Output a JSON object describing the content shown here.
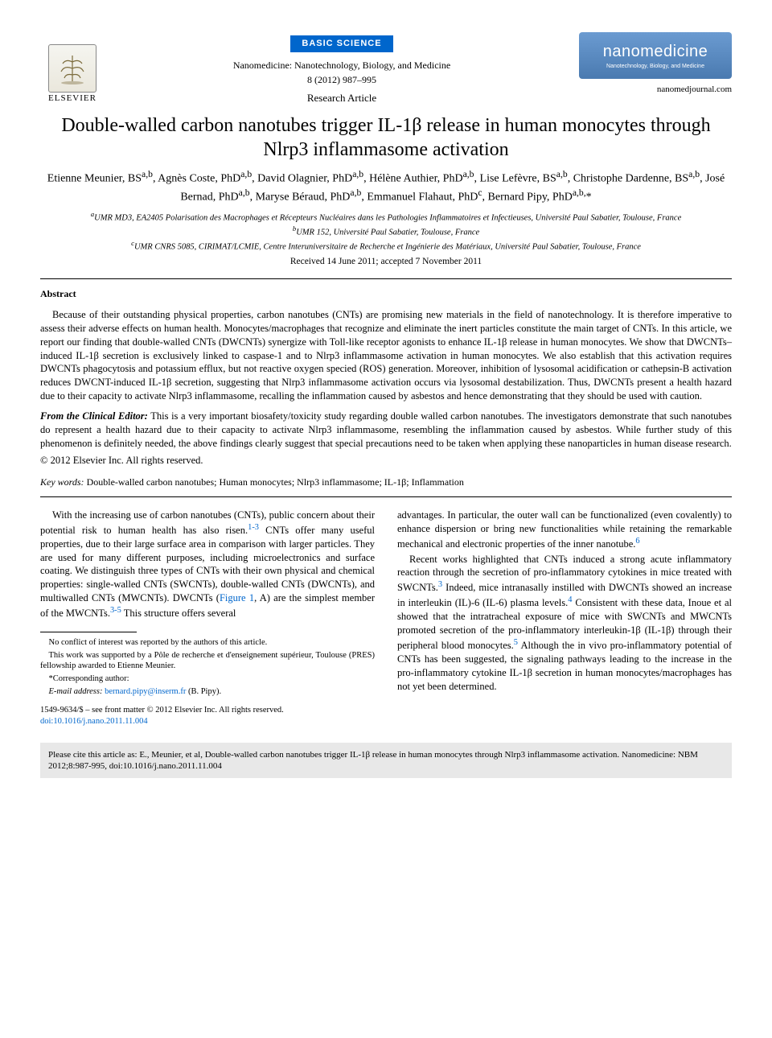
{
  "header": {
    "publisher_name": "ELSEVIER",
    "badge": "BASIC SCIENCE",
    "journal_full": "Nanomedicine: Nanotechnology, Biology, and Medicine",
    "volume_pages": "8 (2012) 987–995",
    "article_type": "Research Article",
    "brand_logo_big": "nanomedicine",
    "brand_logo_small": "Nanotechnology, Biology, and Medicine",
    "journal_url": "nanomedjournal.com",
    "badge_bg": "#0066cc",
    "logo_gradient_top": "#6b9bd1",
    "logo_gradient_bottom": "#4a7ab0"
  },
  "title": "Double-walled carbon nanotubes trigger IL-1β release in human monocytes through Nlrp3 inflammasome activation",
  "authors_html": "Etienne Meunier, BS<sup>a,b</sup>, Agnès Coste, PhD<sup>a,b</sup>, David Olagnier, PhD<sup>a,b</sup>, Hélène Authier, PhD<sup>a,b</sup>, Lise Lefèvre, BS<sup>a,b</sup>, Christophe Dardenne, BS<sup>a,b</sup>, José Bernad, PhD<sup>a,b</sup>, Maryse Béraud, PhD<sup>a,b</sup>, Emmanuel Flahaut, PhD<sup>c</sup>, Bernard Pipy, PhD<sup>a,b,</sup>*",
  "affiliations": {
    "a": "UMR MD3, EA2405 Polarisation des Macrophages et Récepteurs Nucléaires dans les Pathologies Inflammatoires et Infectieuses, Université Paul Sabatier, Toulouse, France",
    "b": "UMR 152, Université Paul Sabatier, Toulouse, France",
    "c": "UMR CNRS 5085, CIRIMAT/LCMIE, Centre Interuniversitaire de Recherche et Ingénierie des Matériaux, Université Paul Sabatier, Toulouse, France"
  },
  "dates": "Received 14 June 2011; accepted 7 November 2011",
  "abstract": {
    "label": "Abstract",
    "text": "Because of their outstanding physical properties, carbon nanotubes (CNTs) are promising new materials in the field of nanotechnology. It is therefore imperative to assess their adverse effects on human health. Monocytes/macrophages that recognize and eliminate the inert particles constitute the main target of CNTs. In this article, we report our finding that double-walled CNTs (DWCNTs) synergize with Toll-like receptor agonists to enhance IL-1β release in human monocytes. We show that DWCNTs–induced IL-1β secretion is exclusively linked to caspase-1 and to Nlrp3 inflammasome activation in human monocytes. We also establish that this activation requires DWCNTs phagocytosis and potassium efflux, but not reactive oxygen specied (ROS) generation. Moreover, inhibition of lysosomal acidification or cathepsin-B activation reduces DWCNT-induced IL-1β secretion, suggesting that Nlrp3 inflammasome activation occurs via lysosomal destabilization. Thus, DWCNTs present a health hazard due to their capacity to activate Nlrp3 inflammasome, recalling the inflammation caused by asbestos and hence demonstrating that they should be used with caution.",
    "clinical_lead": "From the Clinical Editor:",
    "clinical_text": " This is a very important biosafety/toxicity study regarding double walled carbon nanotubes. The investigators demonstrate that such nanotubes do represent a health hazard due to their capacity to activate Nlrp3 inflammasome, resembling the inflammation caused by asbestos. While further study of this phenomenon is definitely needed, the above findings clearly suggest that special precautions need to be taken when applying these nanoparticles in human disease research.",
    "copyright": "© 2012 Elsevier Inc. All rights reserved."
  },
  "keywords": {
    "label": "Key words:",
    "text": "Double-walled carbon nanotubes; Human monocytes; Nlrp3 inflammasome; IL-1β; Inflammation"
  },
  "body": {
    "col1_p1": "With the increasing use of carbon nanotubes (CNTs), public concern about their potential risk to human health has also risen.",
    "col1_ref1": "1-3",
    "col1_p1b": " CNTs offer many useful properties, due to their large surface area in comparison with larger particles. They are used for many different purposes, including microelectronics and surface coating. We distinguish three types of CNTs with their own physical and chemical properties: single-walled CNTs (SWCNTs), double-walled CNTs (DWCNTs), and multiwalled CNTs (MWCNTs). DWCNTs (",
    "col1_fig": "Figure 1",
    "col1_p1c": ", A) are the simplest member of the MWCNTs.",
    "col1_ref2": "3-5",
    "col1_p1d": " This structure offers several",
    "col2_p1": "advantages. In particular, the outer wall can be functionalized (even covalently) to enhance dispersion or bring new functionalities while retaining the remarkable mechanical and electronic properties of the inner nanotube.",
    "col2_ref1": "6",
    "col2_p2a": "Recent works highlighted that CNTs induced a strong acute inflammatory reaction through the secretion of pro-inflammatory cytokines in mice treated with SWCNTs.",
    "col2_ref2": "3",
    "col2_p2b": " Indeed, mice intranasally instilled with DWCNTs showed an increase in interleukin (IL)-6 (IL-6) plasma levels.",
    "col2_ref3": "4",
    "col2_p2c": " Consistent with these data, Inoue et al showed that the intratracheal exposure of mice with SWCNTs and MWCNTs promoted secretion of the pro-inflammatory interleukin-1β (IL-1β) through their peripheral blood monocytes.",
    "col2_ref4": "5",
    "col2_p2d": " Although the in vivo pro-inflammatory potential of CNTs has been suggested, the signaling pathways leading to the increase in the pro-inflammatory cytokine IL-1β secretion in human monocytes/macrophages has not yet been determined."
  },
  "footnotes": {
    "conflict": "No conflict of interest was reported by the authors of this article.",
    "funding": "This work was supported by a Pôle de recherche et d'enseignement supérieur, Toulouse (PRES) fellowship awarded to Etienne Meunier.",
    "corresponding_label": "*Corresponding author:",
    "email_label": "E-mail address:",
    "email": "bernard.pipy@inserm.fr",
    "email_suffix": " (B. Pipy)."
  },
  "front_matter": {
    "line1": "1549-9634/$ – see front matter © 2012 Elsevier Inc. All rights reserved.",
    "doi": "doi:10.1016/j.nano.2011.11.004"
  },
  "cite_box": "Please cite this article as: E., Meunier, et al, Double-walled carbon nanotubes trigger IL-1β release in human monocytes through Nlrp3 inflammasome activation. Nanomedicine: NBM 2012;8:987-995, doi:10.1016/j.nano.2011.11.004",
  "colors": {
    "link": "#0066cc",
    "text": "#000000",
    "cite_bg": "#e8e8e8"
  }
}
